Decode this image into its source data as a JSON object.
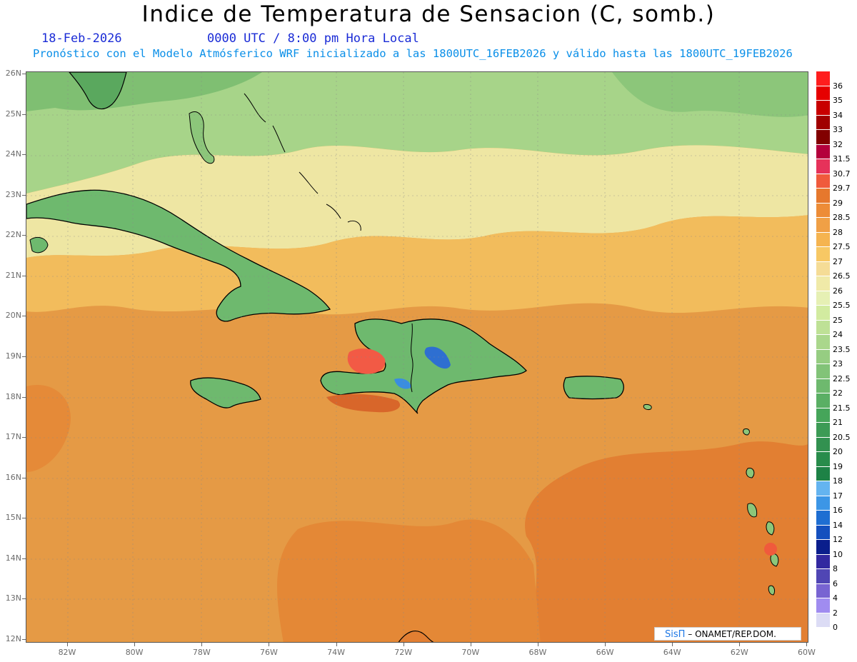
{
  "header": {
    "title": "Indice de Temperatura de Sensacion (C, somb.)",
    "date": "18-Feb-2026",
    "time": "0000 UTC / 8:00 pm Hora Local",
    "subtitle": "Pronóstico con el Modelo Atmósferico WRF inicializado a las 1800UTC_16FEB2026 y válido hasta las  1800UTC_19FEB2026"
  },
  "map": {
    "lat_labels": [
      "26N",
      "25N",
      "24N",
      "23N",
      "22N",
      "21N",
      "20N",
      "19N",
      "18N",
      "17N",
      "16N",
      "15N",
      "14N",
      "13N",
      "12N"
    ],
    "lon_labels": [
      "82W",
      "80W",
      "78W",
      "76W",
      "74W",
      "72W",
      "70W",
      "68W",
      "66W",
      "64W",
      "62W",
      "60W"
    ],
    "background_color": "#e59a45"
  },
  "colorbar": {
    "labels": [
      "36",
      "35",
      "34",
      "33",
      "32",
      "31.5",
      "30.7",
      "29.7",
      "29",
      "28.5",
      "28",
      "27.5",
      "27",
      "26.5",
      "26",
      "25.5",
      "25",
      "24",
      "23.5",
      "23",
      "22.5",
      "22",
      "21.5",
      "21",
      "20.5",
      "20",
      "19",
      "18",
      "17",
      "16",
      "14",
      "12",
      "10",
      "8",
      "6",
      "4",
      "2",
      "0"
    ],
    "colors": [
      "#ff1e1e",
      "#e60000",
      "#c80000",
      "#a00000",
      "#820000",
      "#b4003c",
      "#e6325a",
      "#f05a3c",
      "#e6782d",
      "#ed8c37",
      "#f0a046",
      "#f5b450",
      "#f7c864",
      "#f5dc96",
      "#f0eaa8",
      "#e6f0b4",
      "#d2eba0",
      "#bee196",
      "#aad78c",
      "#96cd82",
      "#82c378",
      "#6eb96e",
      "#5aaf64",
      "#46a55a",
      "#3c9b55",
      "#329150",
      "#288c4b",
      "#1e8246",
      "#64b4f0",
      "#3c96e6",
      "#1e6ed2",
      "#1450be",
      "#0a1e8c",
      "#3228a0",
      "#5046b4",
      "#7864d2",
      "#a08cf0",
      "#dcdcf5"
    ]
  },
  "credit": {
    "brand": "SisΠ",
    "text": "– ONAMET/REP.DOM."
  }
}
